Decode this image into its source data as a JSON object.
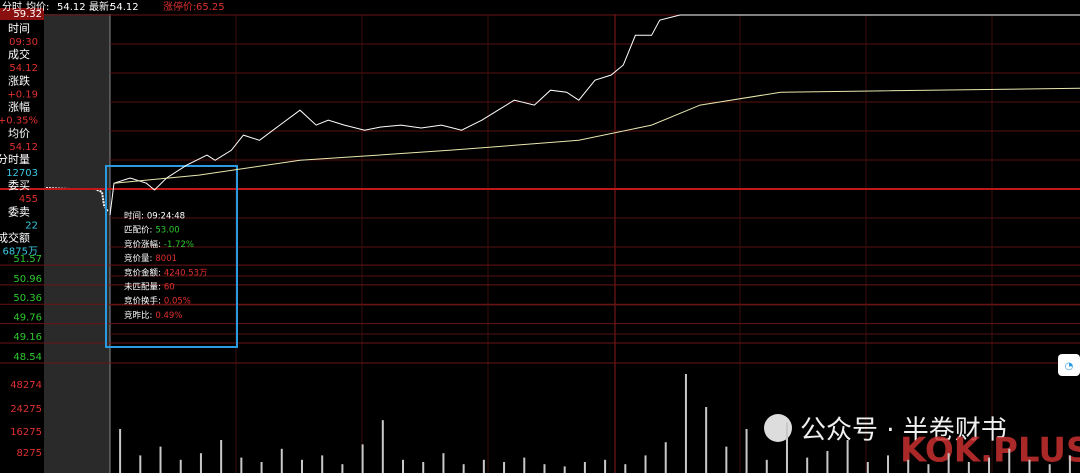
{
  "header": {
    "label": "分时",
    "avg_label": "均价:",
    "avg": "54.12",
    "last_label": "最新:",
    "last": "54.12",
    "limit_label": "涨停价:",
    "limit": "65.25"
  },
  "sidebar": [
    {
      "label": "时间",
      "value": "09:30"
    },
    {
      "label": "成交",
      "value": "54.12"
    },
    {
      "label": "涨跌",
      "value": "+0.19"
    },
    {
      "label": "涨幅",
      "value": "+0.35%"
    },
    {
      "label": "均价",
      "value": "54.12"
    },
    {
      "label": "分时量",
      "value": "12703"
    },
    {
      "label": "委买",
      "value": "455"
    },
    {
      "label": "委卖",
      "value": "22"
    },
    {
      "label": "成交额",
      "value": "6875万"
    }
  ],
  "tooltip": [
    {
      "label": "时间:",
      "value": "09:24:48"
    },
    {
      "label": "匹配价:",
      "value": "53.00"
    },
    {
      "label": "竞价涨幅:",
      "value": "-1.72%"
    },
    {
      "label": "竞价量:",
      "value": "8001"
    },
    {
      "label": "竞价金额:",
      "value": "4240.53万"
    },
    {
      "label": "未匹配量:",
      "value": "60"
    },
    {
      "label": "竞价换手:",
      "value": "0.05%"
    },
    {
      "label": "竞昨比:",
      "value": "0.49%"
    }
  ],
  "watermark": {
    "account": "公众号 · 半卷财书",
    "site": "KOK.PLUS"
  },
  "chart_data": {
    "type": "line",
    "xlim": [
      0,
      240
    ],
    "ylim": [
      48.54,
      59.32
    ],
    "yticks": [
      59.32,
      51.57,
      50.96,
      50.36,
      49.76,
      49.16,
      48.54
    ],
    "prev_close": 53.93,
    "series": [
      {
        "color": "#ffffff",
        "x": [
          0,
          1,
          5,
          9,
          11,
          14,
          19,
          24,
          26,
          30,
          33,
          37,
          42,
          47,
          51,
          54,
          58,
          63,
          67,
          72,
          77,
          82,
          87,
          92,
          96,
          100,
          105,
          109,
          113,
          116,
          120,
          124,
          127,
          130,
          134,
          136,
          141,
          240
        ],
        "values": [
          53.12,
          54.11,
          54.27,
          54.11,
          53.9,
          54.27,
          54.67,
          54.98,
          54.82,
          55.13,
          55.6,
          55.44,
          55.91,
          56.37,
          55.91,
          56.06,
          55.91,
          55.75,
          55.85,
          55.91,
          55.82,
          55.91,
          55.75,
          56.06,
          56.37,
          56.68,
          56.53,
          56.99,
          56.93,
          56.68,
          57.3,
          57.46,
          57.77,
          58.69,
          58.69,
          59.16,
          59.32,
          59.32
        ]
      },
      {
        "color": "#e8e8b0",
        "x": [
          1,
          22,
          47,
          84,
          116,
          134,
          146,
          166,
          240
        ],
        "values": [
          54.11,
          54.36,
          54.82,
          55.13,
          55.44,
          55.91,
          56.53,
          56.93,
          57.05
        ]
      }
    ],
    "volume": {
      "color": "#c8c8c8",
      "ylim": [
        0,
        50000
      ],
      "values": [
        20000,
        8000,
        12000,
        6000,
        9000,
        15000,
        7000,
        5000,
        11000,
        6000,
        8000,
        4000,
        13000,
        24000,
        6000,
        5000,
        9000,
        4000,
        6000,
        5000,
        7000,
        4000,
        3000,
        5000,
        6000,
        4000,
        8000,
        14000,
        45000,
        30000,
        12000,
        20000,
        6000,
        23000,
        7000,
        10000,
        15000,
        5000,
        8000,
        6000,
        4000,
        9000,
        5000,
        7000,
        11000,
        6000,
        4000,
        8000
      ],
      "labels": [
        "48274",
        "24275",
        "16275",
        "8275"
      ]
    }
  }
}
